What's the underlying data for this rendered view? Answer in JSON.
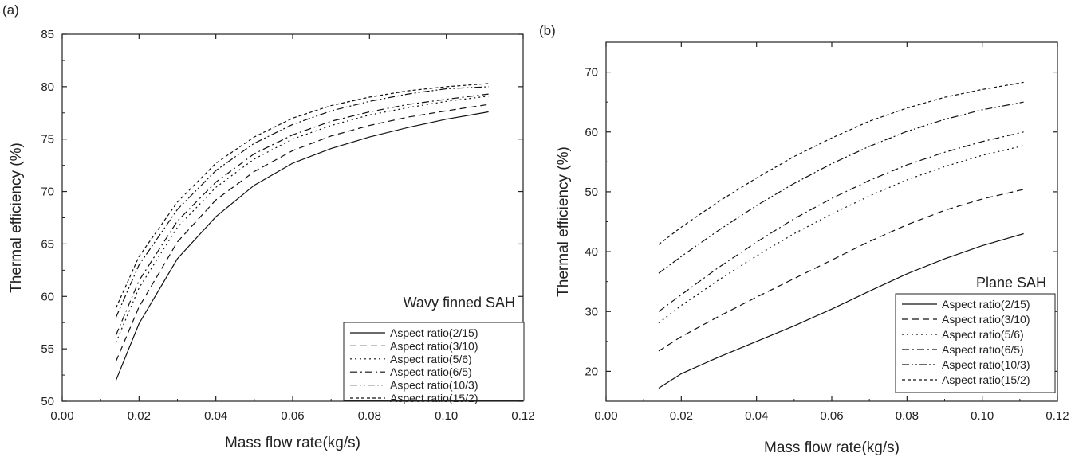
{
  "chart_data": [
    {
      "panel_label": "(a)",
      "type": "line",
      "title": "",
      "annotation": "Wavy finned SAH",
      "xlabel": "Mass flow rate(kg/s)",
      "ylabel": "Thermal efficiency (%)",
      "xlim": [
        0.0,
        0.12
      ],
      "ylim": [
        50,
        85
      ],
      "xticks": [
        "0.00",
        "0.02",
        "0.04",
        "0.06",
        "0.08",
        "0.10",
        "0.12"
      ],
      "yticks": [
        "50",
        "55",
        "60",
        "65",
        "70",
        "75",
        "80",
        "85"
      ],
      "grid": false,
      "legend_position": "bottom-right",
      "x": [
        0.014,
        0.02,
        0.03,
        0.04,
        0.05,
        0.06,
        0.07,
        0.08,
        0.09,
        0.1,
        0.111
      ],
      "series": [
        {
          "name": "Aspect ratio(2/15)",
          "dash": "solid",
          "values": [
            52.0,
            57.4,
            63.6,
            67.6,
            70.6,
            72.7,
            74.1,
            75.2,
            76.1,
            76.9,
            77.6
          ]
        },
        {
          "name": "Aspect ratio(3/10)",
          "dash": "dashed",
          "values": [
            53.8,
            59.0,
            65.2,
            69.2,
            71.9,
            73.9,
            75.3,
            76.3,
            77.1,
            77.7,
            78.3
          ]
        },
        {
          "name": "Aspect ratio(5/6)",
          "dash": "dotted",
          "values": [
            55.6,
            60.8,
            66.6,
            70.4,
            73.1,
            75.0,
            76.3,
            77.3,
            78.0,
            78.6,
            79.1
          ]
        },
        {
          "name": "Aspect ratio(6/5)",
          "dash": "dashdot",
          "values": [
            56.3,
            61.5,
            67.2,
            70.9,
            73.6,
            75.4,
            76.7,
            77.6,
            78.3,
            78.8,
            79.3
          ]
        },
        {
          "name": "Aspect ratio(10/3)",
          "dash": "dashdotdot",
          "values": [
            58.0,
            63.0,
            68.3,
            72.0,
            74.6,
            76.4,
            77.7,
            78.6,
            79.3,
            79.8,
            80.0
          ]
        },
        {
          "name": "Aspect ratio(15/2)",
          "dash": "shortdash",
          "values": [
            58.9,
            63.8,
            69.0,
            72.7,
            75.2,
            77.0,
            78.2,
            79.0,
            79.6,
            80.0,
            80.3
          ]
        }
      ]
    },
    {
      "panel_label": "(b)",
      "type": "line",
      "title": "",
      "annotation": "Plane SAH",
      "xlabel": "Mass flow rate(kg/s)",
      "ylabel": "Thermal efficiency (%)",
      "xlim": [
        0.0,
        0.12
      ],
      "ylim": [
        15,
        75
      ],
      "xticks": [
        "0.00",
        "0.02",
        "0.04",
        "0.06",
        "0.08",
        "0.10",
        "0.12"
      ],
      "yticks": [
        "20",
        "30",
        "40",
        "50",
        "60",
        "70"
      ],
      "grid": false,
      "legend_position": "bottom-right",
      "x": [
        0.014,
        0.02,
        0.03,
        0.04,
        0.05,
        0.06,
        0.07,
        0.08,
        0.09,
        0.1,
        0.111
      ],
      "series": [
        {
          "name": "Aspect ratio(2/15)",
          "dash": "solid",
          "values": [
            17.2,
            19.6,
            22.4,
            25.0,
            27.6,
            30.4,
            33.4,
            36.3,
            38.8,
            41.0,
            43.0
          ]
        },
        {
          "name": "Aspect ratio(3/10)",
          "dash": "dashed",
          "values": [
            23.4,
            25.8,
            29.2,
            32.4,
            35.5,
            38.6,
            41.7,
            44.5,
            46.9,
            48.8,
            50.4
          ]
        },
        {
          "name": "Aspect ratio(5/6)",
          "dash": "dotted",
          "values": [
            28.1,
            31.0,
            35.3,
            39.3,
            43.0,
            46.3,
            49.3,
            52.0,
            54.2,
            56.1,
            57.7
          ]
        },
        {
          "name": "Aspect ratio(6/5)",
          "dash": "dashdot",
          "values": [
            30.0,
            32.8,
            37.4,
            41.6,
            45.5,
            48.9,
            51.9,
            54.5,
            56.6,
            58.4,
            60.0
          ]
        },
        {
          "name": "Aspect ratio(10/3)",
          "dash": "dashdotdot",
          "values": [
            36.4,
            39.2,
            43.6,
            47.7,
            51.4,
            54.7,
            57.6,
            60.1,
            62.1,
            63.7,
            65.0
          ]
        },
        {
          "name": "Aspect ratio(15/2)",
          "dash": "shortdash",
          "values": [
            41.2,
            44.1,
            48.4,
            52.3,
            55.9,
            59.0,
            61.8,
            64.0,
            65.8,
            67.1,
            68.3
          ]
        }
      ]
    }
  ]
}
